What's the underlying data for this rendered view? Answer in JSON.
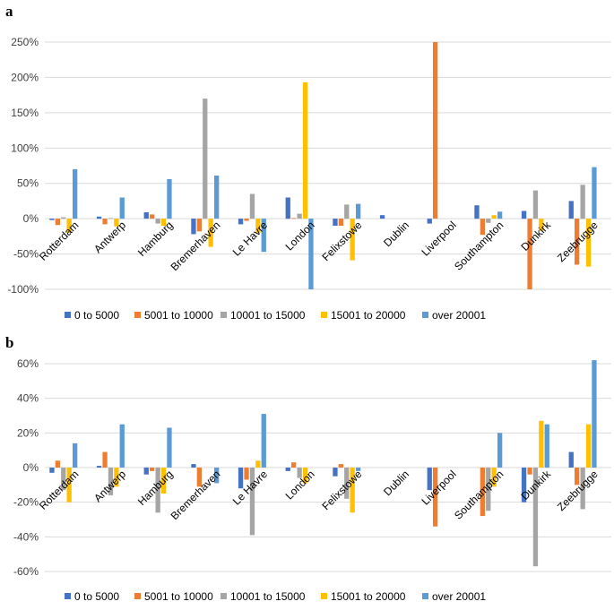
{
  "chart_data": [
    {
      "panel": "a",
      "type": "bar",
      "categories": [
        "Rotterdam",
        "Antwerp",
        "Hamburg",
        "Bremerhaven",
        "Le Havre",
        "London",
        "Felixstowe",
        "Dublin",
        "Liverpool",
        "Southampton",
        "Dunkirk",
        "Zeebrugge"
      ],
      "series": [
        {
          "name": "0 to 5000",
          "color": "#4472C4",
          "values": [
            -2,
            3,
            9,
            -22,
            -8,
            30,
            -10,
            5,
            -7,
            19,
            11,
            25
          ]
        },
        {
          "name": "5001 to 10000",
          "color": "#ED7D31",
          "values": [
            -9,
            -8,
            6,
            -18,
            -3,
            1,
            -10,
            0,
            250,
            -23,
            -100,
            -65
          ]
        },
        {
          "name": "10001 to 15000",
          "color": "#A5A5A5",
          "values": [
            2,
            1,
            -7,
            170,
            35,
            7,
            20,
            0,
            0,
            -6,
            40,
            48
          ]
        },
        {
          "name": "15001 to 20000",
          "color": "#FFC000",
          "values": [
            -20,
            -11,
            -10,
            -40,
            -20,
            193,
            -59,
            0,
            0,
            5,
            -17,
            -68
          ]
        },
        {
          "name": "over 20001",
          "color": "#5B9BD5",
          "values": [
            70,
            30,
            56,
            61,
            -47,
            -100,
            21,
            0,
            0,
            10,
            0,
            73
          ]
        }
      ],
      "ylim": [
        -100,
        250
      ],
      "yticks": [
        -100,
        -50,
        0,
        50,
        100,
        150,
        200,
        250
      ],
      "ytick_labels": [
        "-100%",
        "-50%",
        "0%",
        "50%",
        "100%",
        "150%",
        "200%",
        "250%"
      ],
      "grid": true,
      "legend": "bottom"
    },
    {
      "panel": "b",
      "type": "bar",
      "categories": [
        "Rotterdam",
        "Antwerp",
        "Hamburg",
        "Bremerhaven",
        "Le Havre",
        "London",
        "Felixstowe",
        "Dublin",
        "Liverpool",
        "Southampton",
        "Dunkirk",
        "Zeebrugge"
      ],
      "series": [
        {
          "name": "0 to 5000",
          "color": "#4472C4",
          "values": [
            -3,
            1,
            -4,
            2,
            -12,
            -2,
            -5,
            0,
            -13,
            0,
            -20,
            9
          ]
        },
        {
          "name": "5001 to 10000",
          "color": "#ED7D31",
          "values": [
            4,
            9,
            -2,
            -11,
            -7,
            3,
            2,
            0,
            -34,
            -28,
            -4,
            -10
          ]
        },
        {
          "name": "10001 to 15000",
          "color": "#A5A5A5",
          "values": [
            -13,
            -16,
            -26,
            0,
            -39,
            -6,
            -18,
            0,
            0,
            -25,
            -57,
            -24
          ]
        },
        {
          "name": "15001 to 20000",
          "color": "#FFC000",
          "values": [
            -20,
            -11,
            -15,
            0,
            4,
            -9,
            -26,
            0,
            0,
            -11,
            27,
            25
          ]
        },
        {
          "name": "over 20001",
          "color": "#5B9BD5",
          "values": [
            14,
            25,
            23,
            -9,
            31,
            0,
            -2,
            0,
            0,
            20,
            25,
            62
          ]
        }
      ],
      "ylim": [
        -60,
        60
      ],
      "yticks": [
        -60,
        -40,
        -20,
        0,
        20,
        40,
        60
      ],
      "ytick_labels": [
        "-60%",
        "-40%",
        "-20%",
        "0%",
        "20%",
        "40%",
        "60%"
      ],
      "grid": true,
      "legend": "bottom"
    }
  ]
}
